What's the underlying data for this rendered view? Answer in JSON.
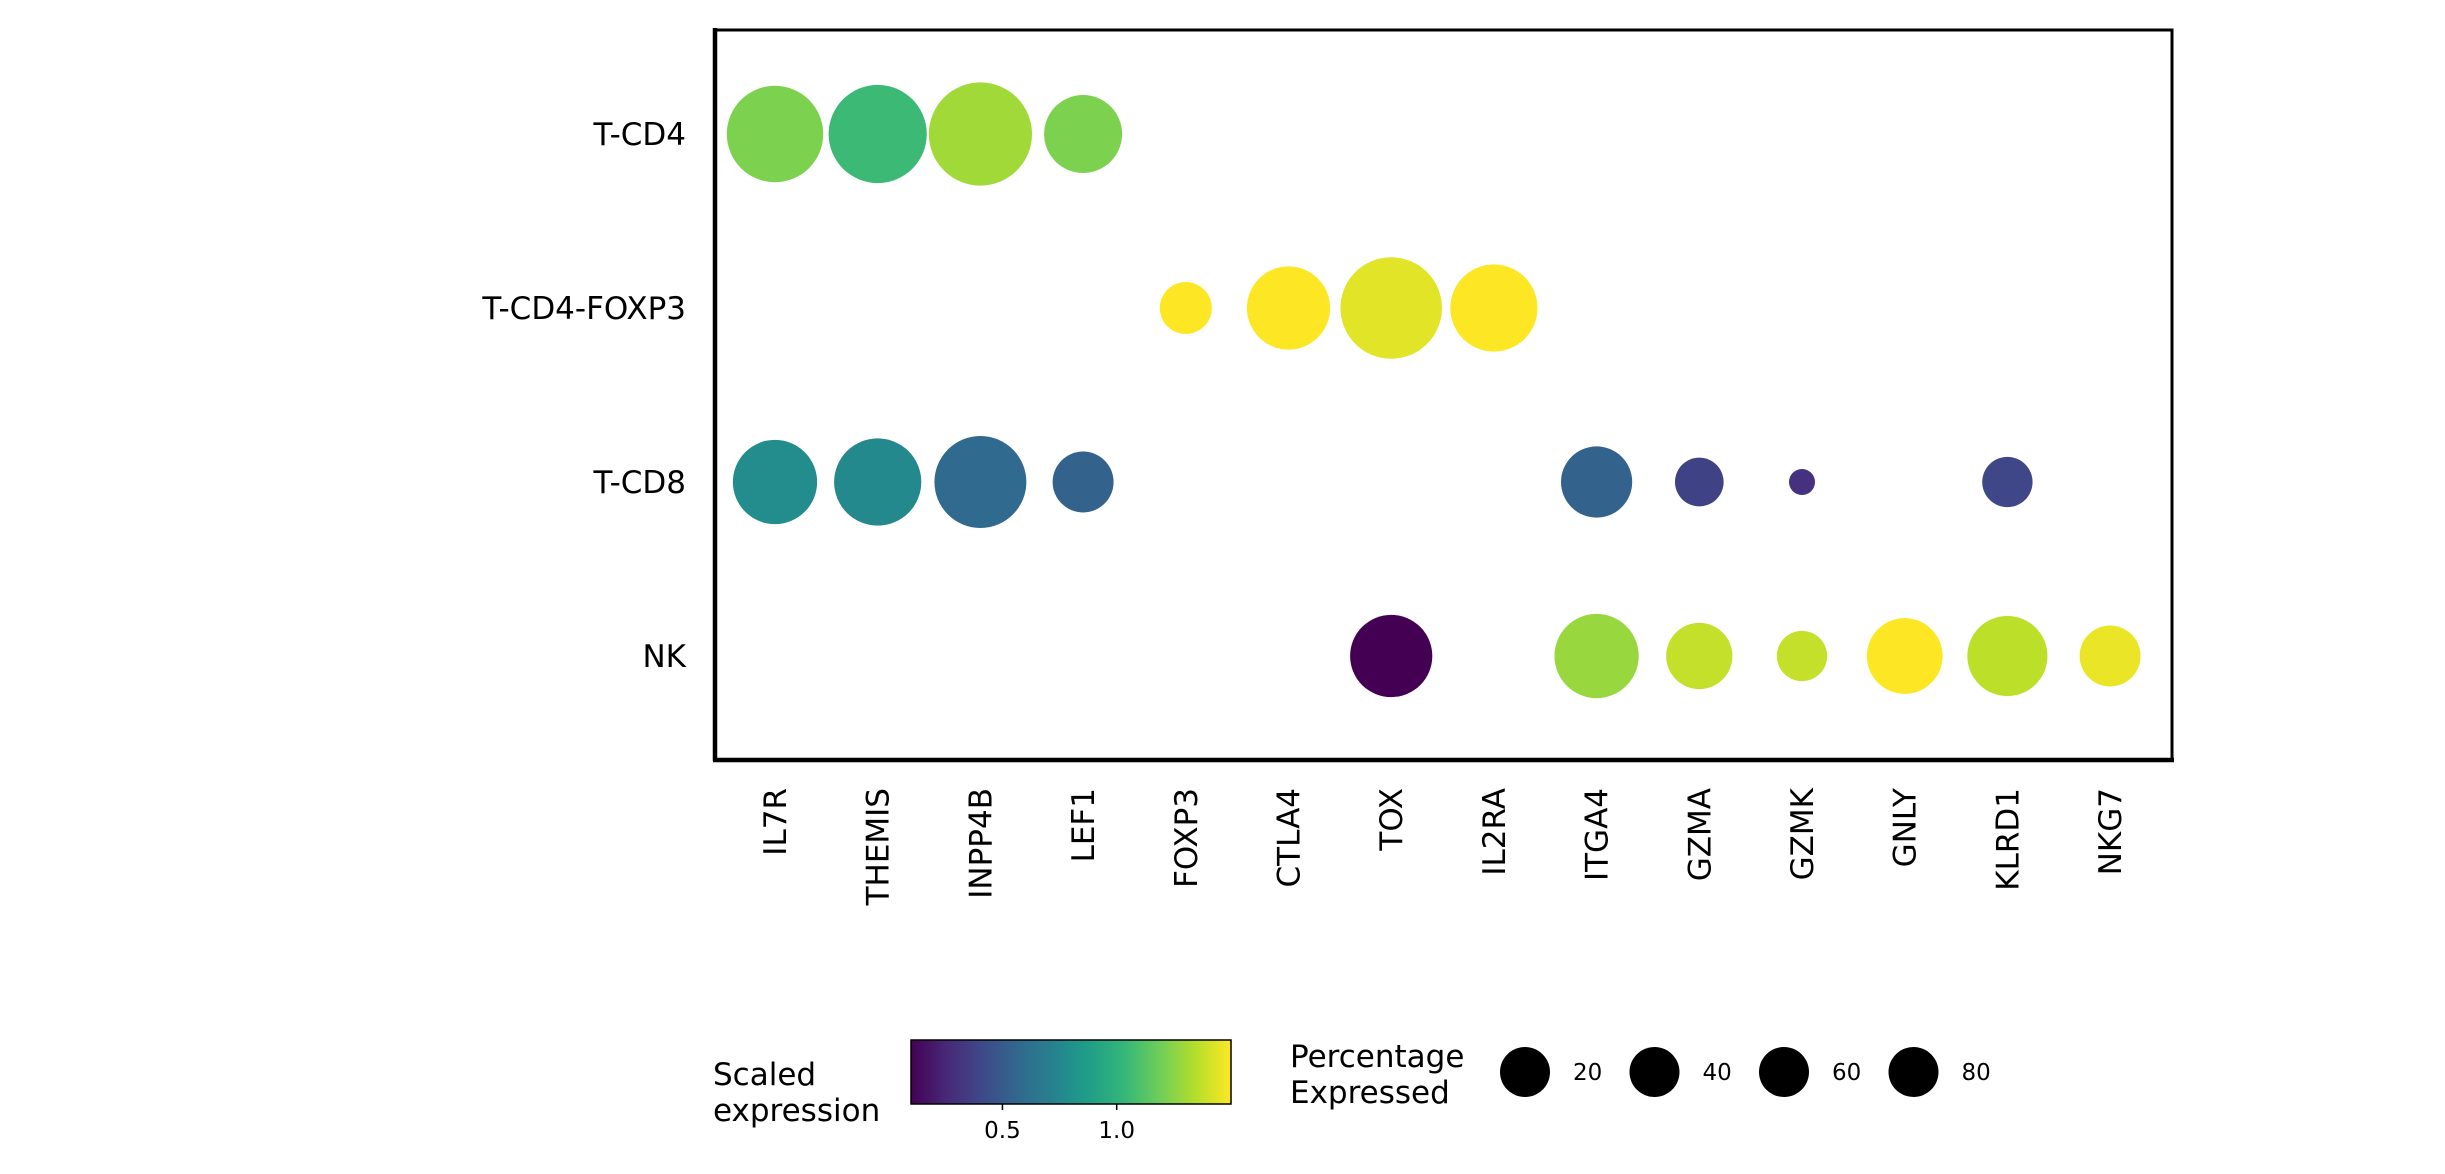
{
  "chart_data": {
    "type": "dotplot",
    "groups": [
      "T-CD4",
      "T-CD4-FOXP3",
      "T-CD8",
      "NK"
    ],
    "genes": [
      "IL7R",
      "THEMIS",
      "INPP4B",
      "LEF1",
      "FOXP3",
      "CTLA4",
      "TOX",
      "IL2RA",
      "ITGA4",
      "GZMA",
      "GZMK",
      "GNLY",
      "KLRD1",
      "NKG7"
    ],
    "points": [
      {
        "group": "T-CD4",
        "gene": "IL7R",
        "scaled_expression": 1.22,
        "pct_expressed": 55
      },
      {
        "group": "T-CD4",
        "gene": "THEMIS",
        "scaled_expression": 1.05,
        "pct_expressed": 57
      },
      {
        "group": "T-CD4",
        "gene": "INPP4B",
        "scaled_expression": 1.3,
        "pct_expressed": 63
      },
      {
        "group": "T-CD4",
        "gene": "LEF1",
        "scaled_expression": 1.22,
        "pct_expressed": 36
      },
      {
        "group": "T-CD4-FOXP3",
        "gene": "FOXP3",
        "scaled_expression": 1.5,
        "pct_expressed": 16
      },
      {
        "group": "T-CD4-FOXP3",
        "gene": "CTLA4",
        "scaled_expression": 1.5,
        "pct_expressed": 41
      },
      {
        "group": "T-CD4-FOXP3",
        "gene": "TOX",
        "scaled_expression": 1.44,
        "pct_expressed": 61
      },
      {
        "group": "T-CD4-FOXP3",
        "gene": "IL2RA",
        "scaled_expression": 1.5,
        "pct_expressed": 45
      },
      {
        "group": "T-CD8",
        "gene": "IL7R",
        "scaled_expression": 0.78,
        "pct_expressed": 42
      },
      {
        "group": "T-CD8",
        "gene": "THEMIS",
        "scaled_expression": 0.76,
        "pct_expressed": 45
      },
      {
        "group": "T-CD8",
        "gene": "INPP4B",
        "scaled_expression": 0.58,
        "pct_expressed": 50
      },
      {
        "group": "T-CD8",
        "gene": "LEF1",
        "scaled_expression": 0.54,
        "pct_expressed": 22
      },
      {
        "group": "T-CD8",
        "gene": "ITGA4",
        "scaled_expression": 0.54,
        "pct_expressed": 30
      },
      {
        "group": "T-CD8",
        "gene": "GZMA",
        "scaled_expression": 0.38,
        "pct_expressed": 14
      },
      {
        "group": "T-CD8",
        "gene": "GZMK",
        "scaled_expression": 0.3,
        "pct_expressed": 4
      },
      {
        "group": "T-CD8",
        "gene": "KLRD1",
        "scaled_expression": 0.4,
        "pct_expressed": 15
      },
      {
        "group": "NK",
        "gene": "TOX",
        "scaled_expression": 0.1,
        "pct_expressed": 40
      },
      {
        "group": "NK",
        "gene": "ITGA4",
        "scaled_expression": 1.28,
        "pct_expressed": 42
      },
      {
        "group": "NK",
        "gene": "GZMA",
        "scaled_expression": 1.38,
        "pct_expressed": 26
      },
      {
        "group": "NK",
        "gene": "GZMK",
        "scaled_expression": 1.38,
        "pct_expressed": 15
      },
      {
        "group": "NK",
        "gene": "GNLY",
        "scaled_expression": 1.5,
        "pct_expressed": 34
      },
      {
        "group": "NK",
        "gene": "KLRD1",
        "scaled_expression": 1.36,
        "pct_expressed": 38
      },
      {
        "group": "NK",
        "gene": "NKG7",
        "scaled_expression": 1.46,
        "pct_expressed": 22
      }
    ],
    "color_scale": {
      "title": "Scaled\nexpression",
      "colormap": "viridis",
      "domain": [
        0.1,
        1.5
      ],
      "ticks": [
        0.5,
        1.0
      ],
      "tick_labels": [
        "0.5",
        "1.0"
      ],
      "stops": [
        "#440154",
        "#482878",
        "#3e4989",
        "#31688e",
        "#26828e",
        "#1f9e89",
        "#35b779",
        "#6ece58",
        "#b5de2b",
        "#fde725"
      ]
    },
    "size_legend": {
      "title": "Percentage\nExpressed",
      "values": [
        20,
        40,
        60,
        80
      ],
      "labels": [
        "20",
        "40",
        "60",
        "80"
      ]
    },
    "grid": false,
    "legend_position": "bottom"
  }
}
